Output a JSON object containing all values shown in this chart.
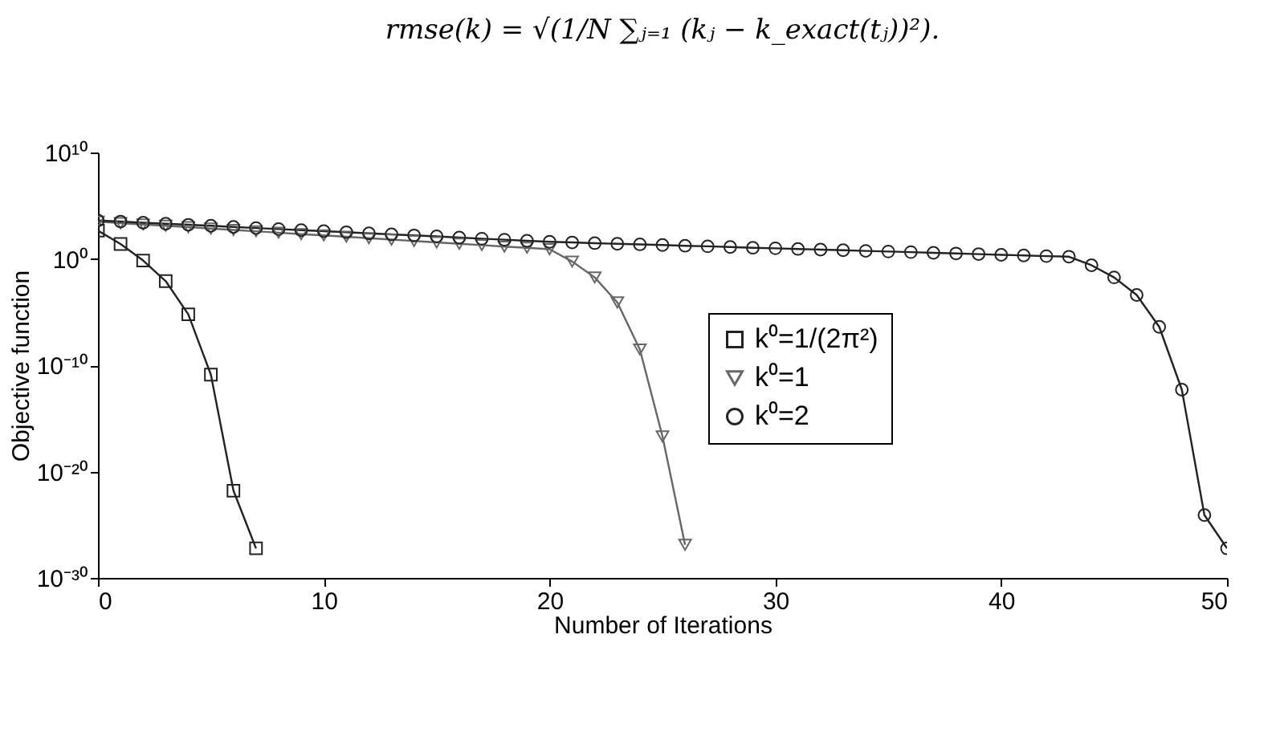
{
  "chart_data": {
    "type": "line",
    "annotations": [
      "rmse(k) = √(1/N ∑ⱼ₌₁ (kⱼ − k_exact(tⱼ))²)."
    ],
    "xlabel": "Number of Iterations",
    "ylabel": "Objective function",
    "xlim": [
      0,
      50
    ],
    "xticks": [
      0,
      10,
      20,
      30,
      40,
      50
    ],
    "ylim": [
      1e-30,
      10000000000.0
    ],
    "yticks": [
      {
        "value": 1e-30,
        "label": "10⁻³⁰"
      },
      {
        "value": 1e-20,
        "label": "10⁻²⁰"
      },
      {
        "value": 1e-10,
        "label": "10⁻¹⁰"
      },
      {
        "value": 1,
        "label": "10⁰"
      },
      {
        "value": 10000000000.0,
        "label": "10¹⁰"
      }
    ],
    "log": "y",
    "grid": false,
    "legend": "right",
    "line_style": "solid",
    "series": [
      {
        "name": "k⁰=1/(2π²)",
        "color": "#222222",
        "marker": "square",
        "x": [
          0,
          1,
          2,
          3,
          4,
          5,
          6,
          7
        ],
        "values": [
          450,
          25,
          0.7,
          0.008,
          6e-06,
          1.3e-11,
          1.6e-22,
          6e-28
        ]
      },
      {
        "name": "k⁰=1",
        "color": "#666666",
        "marker": "triangle",
        "x": [
          0,
          1,
          2,
          3,
          4,
          5,
          6,
          7,
          8,
          9,
          10,
          11,
          12,
          13,
          14,
          15,
          16,
          17,
          18,
          19,
          20,
          21,
          22,
          23,
          24,
          25,
          26
        ],
        "values": [
          3200,
          2300,
          1700,
          1300,
          950,
          710,
          520,
          390,
          290,
          210,
          160,
          120,
          87,
          65,
          48,
          35,
          26,
          19.5,
          14,
          11,
          8,
          0.56,
          0.018,
          8e-05,
          3e-09,
          2e-17,
          1.3e-27
        ]
      },
      {
        "name": "k⁰=2",
        "color": "#222222",
        "marker": "circle",
        "x": [
          0,
          1,
          2,
          3,
          4,
          5,
          6,
          7,
          8,
          9,
          10,
          11,
          12,
          13,
          14,
          15,
          16,
          17,
          18,
          19,
          20,
          21,
          22,
          23,
          24,
          25,
          26,
          27,
          28,
          29,
          30,
          31,
          32,
          33,
          34,
          35,
          36,
          37,
          38,
          39,
          40,
          41,
          42,
          43,
          44,
          45,
          46,
          47,
          48,
          49,
          50
        ],
        "values": [
          4000,
          3200,
          2500,
          2000,
          1600,
          1300,
          1000,
          790,
          630,
          500,
          400,
          320,
          250,
          200,
          160,
          130,
          100,
          79,
          63,
          50,
          40,
          35,
          30,
          26,
          23,
          20,
          17,
          15,
          13,
          11,
          9.8,
          8.5,
          7.4,
          6.5,
          5.6,
          4.9,
          4.3,
          3.7,
          3.2,
          2.8,
          2.4,
          2.1,
          1.8,
          1.6,
          0.25,
          0.018,
          0.0004,
          4e-07,
          5e-13,
          8e-25,
          6e-28
        ]
      }
    ]
  }
}
